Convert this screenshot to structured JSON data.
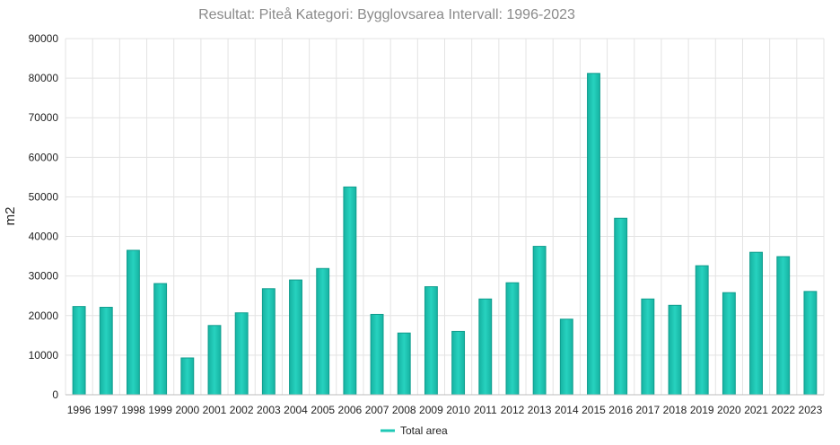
{
  "colors": {
    "bar_fill": "#27d2bf",
    "bar_fill_dark": "#16b3a2",
    "bar_stroke": "#119d8e",
    "legend_line": "#1fc8b6"
  },
  "chart_data": {
    "type": "bar",
    "title": "Resultat: Piteå Kategori: Bygglovsarea Intervall: 1996-2023",
    "xlabel": "",
    "ylabel": "m2",
    "ylim": [
      0,
      90000
    ],
    "yticks": [
      "0",
      "10000",
      "20000",
      "30000",
      "40000",
      "50000",
      "60000",
      "70000",
      "80000",
      "90000"
    ],
    "grid": true,
    "legend_position": "bottom",
    "categories": [
      "1996",
      "1997",
      "1998",
      "1999",
      "2000",
      "2001",
      "2002",
      "2003",
      "2004",
      "2005",
      "2006",
      "2007",
      "2008",
      "2009",
      "2010",
      "2011",
      "2012",
      "2013",
      "2014",
      "2015",
      "2016",
      "2017",
      "2018",
      "2019",
      "2020",
      "2021",
      "2022",
      "2023"
    ],
    "series": [
      {
        "name": "Total area",
        "values": [
          22300,
          22100,
          36500,
          28100,
          9300,
          17500,
          20700,
          26800,
          29000,
          31900,
          52500,
          20300,
          15600,
          27300,
          16000,
          24200,
          28300,
          37500,
          19100,
          81200,
          44600,
          24200,
          22600,
          32600,
          25800,
          36000,
          34900,
          26100
        ]
      }
    ]
  }
}
